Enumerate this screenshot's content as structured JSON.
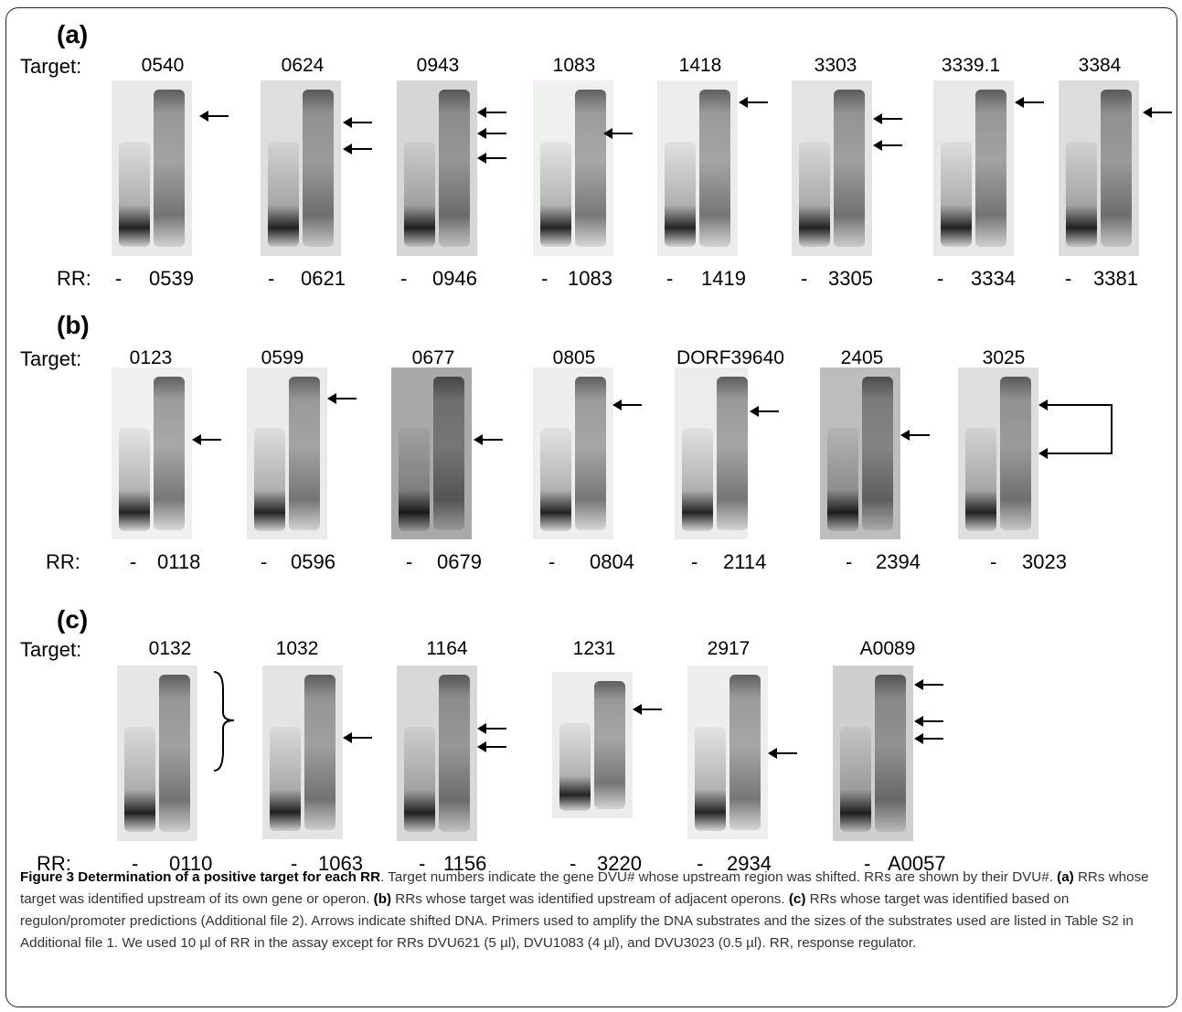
{
  "panels": [
    {
      "letter": "(a)",
      "target_label": "Target:",
      "rr_label": "RR:",
      "gels": [
        {
          "target": "0540",
          "control": "-",
          "rr": "0539"
        },
        {
          "target": "0624",
          "control": "-",
          "rr": "0621"
        },
        {
          "target": "0943",
          "control": "-",
          "rr": "0946"
        },
        {
          "target": "1083",
          "control": "-",
          "rr": "1083"
        },
        {
          "target": "1418",
          "control": "-",
          "rr": "1419"
        },
        {
          "target": "3303",
          "control": "-",
          "rr": "3305"
        },
        {
          "target": "3339.1",
          "control": "-",
          "rr": "3334"
        },
        {
          "target": "3384",
          "control": "-",
          "rr": "3381"
        }
      ]
    },
    {
      "letter": "(b)",
      "target_label": "Target:",
      "rr_label": "RR:",
      "gels": [
        {
          "target": "0123",
          "control": "-",
          "rr": "0118"
        },
        {
          "target": "0599",
          "control": "-",
          "rr": "0596"
        },
        {
          "target": "0677",
          "control": "-",
          "rr": "0679"
        },
        {
          "target": "0805",
          "control": "-",
          "rr": "0804"
        },
        {
          "target": "DORF39640",
          "control": "-",
          "rr": "2114"
        },
        {
          "target": "2405",
          "control": "-",
          "rr": "2394"
        },
        {
          "target": "3025",
          "control": "-",
          "rr": "3023"
        }
      ]
    },
    {
      "letter": "(c)",
      "target_label": "Target:",
      "rr_label": "RR:",
      "gels": [
        {
          "target": "0132",
          "control": "-",
          "rr": "0110"
        },
        {
          "target": "1032",
          "control": "-",
          "rr": "1063"
        },
        {
          "target": "1164",
          "control": "-",
          "rr": "1156"
        },
        {
          "target": "1231",
          "control": "-",
          "rr": "3220"
        },
        {
          "target": "2917",
          "control": "-",
          "rr": "2934"
        },
        {
          "target": "A0089",
          "control": "-",
          "rr": "A0057"
        }
      ]
    }
  ],
  "caption": {
    "title": "Figure 3 Determination of a positive target for each RR",
    "s1": ". Target numbers indicate the gene DVU# whose upstream region was shifted. RRs are shown by their DVU#. ",
    "a": "(a)",
    "a_text": " RRs whose target was identified upstream of its own gene or operon. ",
    "b": "(b)",
    "b_text": " RRs whose target was identified upstream of adjacent operons. ",
    "c": "(c)",
    "c_text": " RRs whose target was identified based on regulon/promoter predictions (Additional file 2). Arrows indicate shifted DNA. Primers used to amplify the DNA substrates and the sizes of the substrates used are listed in Table S2 in Additional file 1. We used 10 µl of RR in the assay except for RRs DVU621 (5 µl), DVU1083 (4 µl), and DVU3023 (0.5 µl). RR, response regulator."
  }
}
